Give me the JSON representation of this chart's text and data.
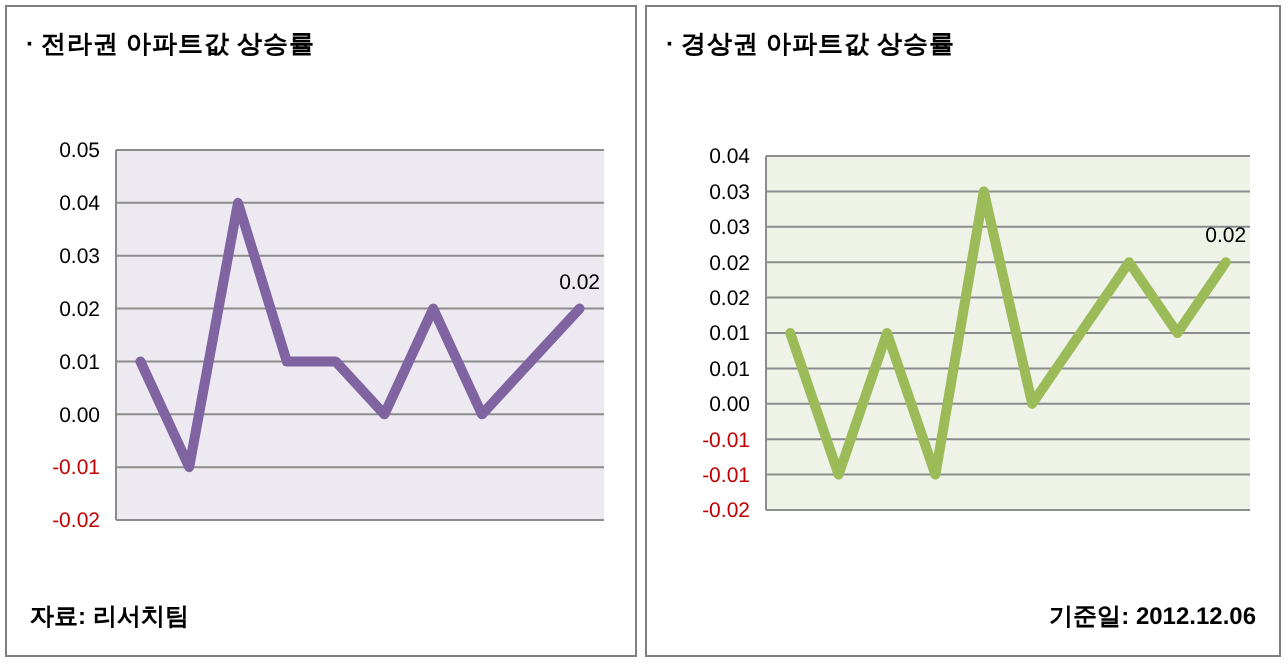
{
  "chart_data": [
    {
      "type": "line",
      "title": "· 전라권 아파트값 상승률",
      "categories": [
        null,
        null,
        null,
        null,
        null,
        null,
        null,
        null,
        null,
        null
      ],
      "series": [
        {
          "color": "#8064a2",
          "values": [
            0.01,
            -0.01,
            0.04,
            0.01,
            0.01,
            0,
            0.02,
            0,
            0.01,
            0.02
          ],
          "value_labels": [
            null,
            null,
            null,
            null,
            null,
            null,
            null,
            null,
            null,
            "0.02"
          ]
        }
      ],
      "ylim": [
        -0.02,
        0.05
      ],
      "yticks": [
        {
          "value": -0.02,
          "label": "-0.02"
        },
        {
          "value": -0.01,
          "label": "-0.01"
        },
        {
          "value": 0,
          "label": "0.00"
        },
        {
          "value": 0.01,
          "label": "0.01"
        },
        {
          "value": 0.02,
          "label": "0.02"
        },
        {
          "value": 0.03,
          "label": "0.03"
        },
        {
          "value": 0.04,
          "label": "0.04"
        },
        {
          "value": 0.05,
          "label": "0.05"
        }
      ],
      "grid": "y",
      "marker": "none",
      "line_style": "solid",
      "annotations": [
        "자료: 리서치팀"
      ]
    },
    {
      "type": "line",
      "title": "· 경상권 아파트값 상승률",
      "categories": [
        null,
        null,
        null,
        null,
        null,
        null,
        null,
        null,
        null,
        null
      ],
      "series": [
        {
          "color": "#9bbb59",
          "values": [
            0.01,
            -0.01,
            0.01,
            -0.01,
            0.03,
            0,
            0.01,
            0.02,
            0.01,
            0.02
          ],
          "value_labels": [
            null,
            null,
            null,
            null,
            null,
            null,
            null,
            null,
            null,
            "0.02"
          ]
        }
      ],
      "ylim": [
        -0.015,
        0.035
      ],
      "yticks": [
        {
          "value": -0.015,
          "label": "-0.02"
        },
        {
          "value": -0.01,
          "label": "-0.01"
        },
        {
          "value": -0.005,
          "label": "-0.01"
        },
        {
          "value": 0,
          "label": "0.00"
        },
        {
          "value": 0.005,
          "label": "0.01"
        },
        {
          "value": 0.01,
          "label": "0.01"
        },
        {
          "value": 0.015,
          "label": "0.02"
        },
        {
          "value": 0.02,
          "label": "0.02"
        },
        {
          "value": 0.025,
          "label": "0.03"
        },
        {
          "value": 0.03,
          "label": "0.03"
        },
        {
          "value": 0.035,
          "label": "0.04"
        }
      ],
      "grid": "y",
      "marker": "none",
      "line_style": "solid",
      "annotations": [
        "기준일: 2012.12.06"
      ]
    }
  ]
}
